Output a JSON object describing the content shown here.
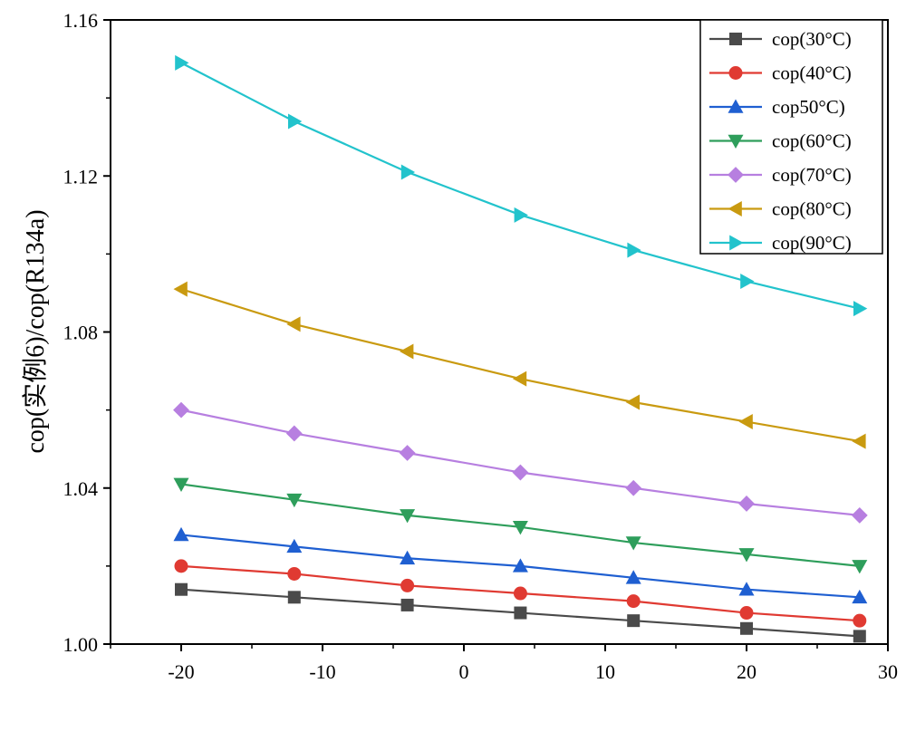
{
  "chart_data": {
    "type": "line",
    "title": "",
    "xlabel": "",
    "ylabel": "cop(实例6)/cop(R134a)",
    "xlim": [
      -25,
      30
    ],
    "ylim": [
      1.0,
      1.16
    ],
    "xticks": [
      -20,
      -10,
      0,
      10,
      20,
      30
    ],
    "yticks": [
      1.0,
      1.04,
      1.08,
      1.12,
      1.16
    ],
    "xtick_labels": [
      "-20",
      "-10",
      "0",
      "10",
      "20",
      "30"
    ],
    "ytick_labels": [
      "1.00",
      "1.04",
      "1.08",
      "1.12",
      "1.16"
    ],
    "grid": false,
    "legend_position": "top-right",
    "x": [
      -20,
      -12,
      -4,
      4,
      12,
      20,
      28
    ],
    "series": [
      {
        "name": "cop(30°C)",
        "color": "#4a4a4a",
        "marker": "square",
        "values": [
          1.014,
          1.012,
          1.01,
          1.008,
          1.006,
          1.004,
          1.002
        ]
      },
      {
        "name": "cop(40°C)",
        "color": "#e03a32",
        "marker": "circle",
        "values": [
          1.02,
          1.018,
          1.015,
          1.013,
          1.011,
          1.008,
          1.006
        ]
      },
      {
        "name": "cop50°C)",
        "color": "#1f5fd1",
        "marker": "triangle-up",
        "values": [
          1.028,
          1.025,
          1.022,
          1.02,
          1.017,
          1.014,
          1.012
        ]
      },
      {
        "name": "cop(60°C)",
        "color": "#2e9e5b",
        "marker": "triangle-down",
        "values": [
          1.041,
          1.037,
          1.033,
          1.03,
          1.026,
          1.023,
          1.02
        ]
      },
      {
        "name": "cop(70°C)",
        "color": "#b77fe0",
        "marker": "diamond",
        "values": [
          1.06,
          1.054,
          1.049,
          1.044,
          1.04,
          1.036,
          1.033
        ]
      },
      {
        "name": "cop(80°C)",
        "color": "#c99a10",
        "marker": "triangle-left",
        "values": [
          1.091,
          1.082,
          1.075,
          1.068,
          1.062,
          1.057,
          1.052
        ]
      },
      {
        "name": "cop(90°C)",
        "color": "#22c3cc",
        "marker": "triangle-right",
        "values": [
          1.149,
          1.134,
          1.121,
          1.11,
          1.101,
          1.093,
          1.086
        ]
      }
    ]
  }
}
